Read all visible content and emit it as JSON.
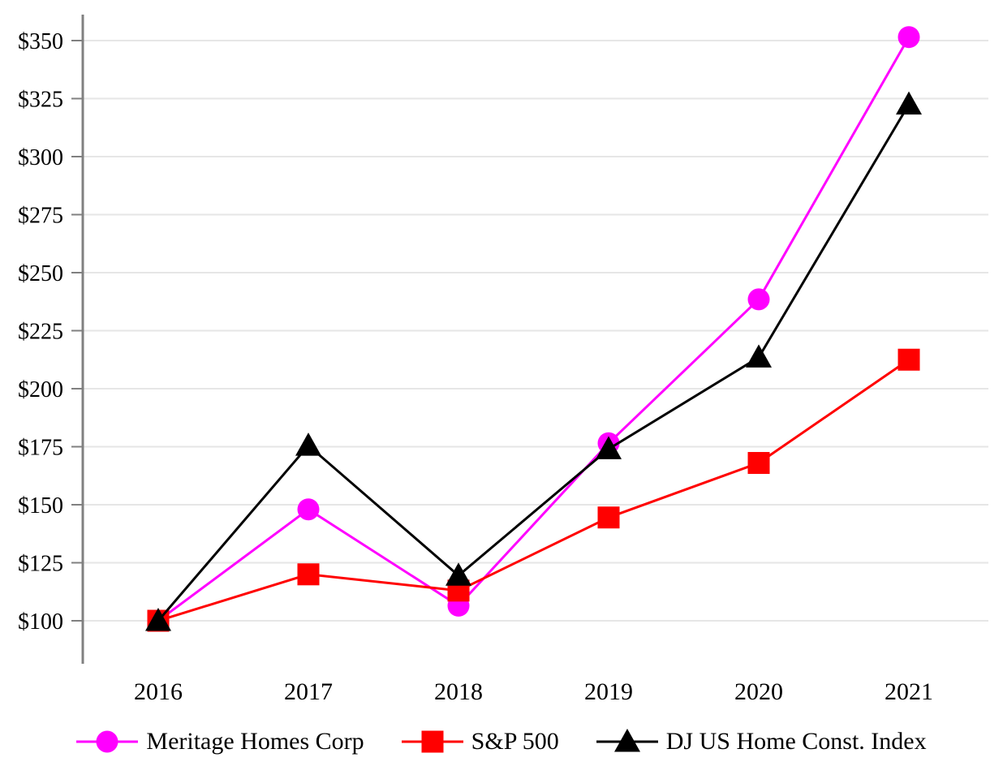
{
  "page": {
    "background": "#FFFFFF"
  },
  "style": {
    "grid_color": "#E6E6E6",
    "axis_color": "#808080",
    "text_color": "#000000"
  },
  "chart_data": {
    "type": "line",
    "title": "",
    "xlabel": "",
    "ylabel": "",
    "grid": true,
    "legend_position": "bottom",
    "x_labels": [
      "2016",
      "2017",
      "2018",
      "2019",
      "2020",
      "2021"
    ],
    "ylim": [
      80,
      362
    ],
    "y_ticks": [
      {
        "value": 100,
        "label": "$100"
      },
      {
        "value": 125,
        "label": "$125"
      },
      {
        "value": 150,
        "label": "$150"
      },
      {
        "value": 175,
        "label": "$175"
      },
      {
        "value": 200,
        "label": "$200"
      },
      {
        "value": 225,
        "label": "$225"
      },
      {
        "value": 250,
        "label": "$250"
      },
      {
        "value": 275,
        "label": "$275"
      },
      {
        "value": 300,
        "label": "$300"
      },
      {
        "value": 325,
        "label": "$325"
      },
      {
        "value": 350,
        "label": "$350"
      }
    ],
    "series": [
      {
        "name": "Meritage Homes Corp",
        "marker": "circle",
        "color": "#FF00FF",
        "values": [
          100,
          148,
          106.5,
          176.5,
          238.5,
          351.5
        ]
      },
      {
        "name": "S&P 500",
        "marker": "square",
        "color": "#FF0000",
        "values": [
          100,
          120,
          113,
          144.5,
          168,
          212.5
        ]
      },
      {
        "name": "DJ US Home Const. Index",
        "marker": "triangle",
        "color": "#000000",
        "values": [
          100,
          175.5,
          119.5,
          174,
          213.5,
          322.5
        ]
      }
    ]
  }
}
